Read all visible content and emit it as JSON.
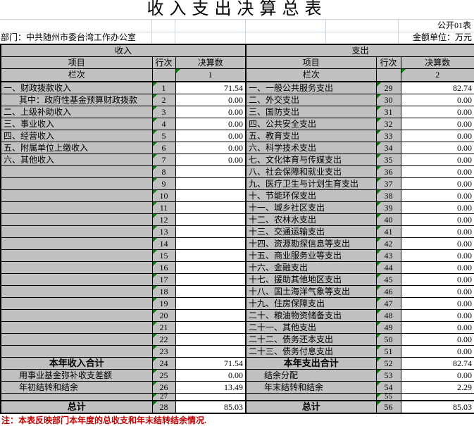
{
  "title": "收入支出决算总表",
  "meta": {
    "table_code": "公开01表",
    "department_label": "部门：中共随州市委台湾工作办公室",
    "unit_label": "金额单位：万元"
  },
  "table": {
    "income_header": "收入",
    "expense_header": "支出",
    "col_headers": {
      "item": "项目",
      "line": "行次",
      "amount": "决算数"
    },
    "column_row_label": "栏次",
    "income_col_no": "1",
    "expense_col_no": "2",
    "income_rows": [
      {
        "label": "一、财政拨款收入",
        "line": "1",
        "value": "71.54",
        "style": "normal"
      },
      {
        "label": "其中：政府性基金预算财政拨款",
        "line": "2",
        "value": "0.00",
        "style": "indent"
      },
      {
        "label": "二、上级补助收入",
        "line": "3",
        "value": "0.00",
        "style": "normal"
      },
      {
        "label": "三、事业收入",
        "line": "4",
        "value": "0.00",
        "style": "normal"
      },
      {
        "label": "四、经营收入",
        "line": "5",
        "value": "0.00",
        "style": "normal"
      },
      {
        "label": "五、附属单位上缴收入",
        "line": "6",
        "value": "0.00",
        "style": "normal"
      },
      {
        "label": "六、其他收入",
        "line": "7",
        "value": "0.00",
        "style": "normal"
      },
      {
        "label": "",
        "line": "8",
        "value": "",
        "style": "normal"
      },
      {
        "label": "",
        "line": "9",
        "value": "",
        "style": "normal"
      },
      {
        "label": "",
        "line": "10",
        "value": "",
        "style": "normal"
      },
      {
        "label": "",
        "line": "11",
        "value": "",
        "style": "normal"
      },
      {
        "label": "",
        "line": "12",
        "value": "",
        "style": "normal"
      },
      {
        "label": "",
        "line": "13",
        "value": "",
        "style": "normal"
      },
      {
        "label": "",
        "line": "14",
        "value": "",
        "style": "normal"
      },
      {
        "label": "",
        "line": "15",
        "value": "",
        "style": "normal"
      },
      {
        "label": "",
        "line": "16",
        "value": "",
        "style": "normal"
      },
      {
        "label": "",
        "line": "17",
        "value": "",
        "style": "normal"
      },
      {
        "label": "",
        "line": "18",
        "value": "",
        "style": "normal"
      },
      {
        "label": "",
        "line": "19",
        "value": "",
        "style": "normal"
      },
      {
        "label": "",
        "line": "20",
        "value": "",
        "style": "normal"
      },
      {
        "label": "",
        "line": "21",
        "value": "",
        "style": "normal"
      },
      {
        "label": "",
        "line": "22",
        "value": "",
        "style": "normal"
      },
      {
        "label": "",
        "line": "23",
        "value": "",
        "style": "normal"
      },
      {
        "label": "本年收入合计",
        "line": "24",
        "value": "71.54",
        "style": "total"
      },
      {
        "label": "用事业基金弥补收支差额",
        "line": "25",
        "value": "0.00",
        "style": "indent"
      },
      {
        "label": "年初结转和结余",
        "line": "26",
        "value": "13.49",
        "style": "indent"
      },
      {
        "label": "",
        "line": "27",
        "value": "",
        "style": "normal",
        "short": true
      },
      {
        "label": "总计",
        "line": "28",
        "value": "85.03",
        "style": "total",
        "thick_top": true
      }
    ],
    "expense_rows": [
      {
        "label": "一、一般公共服务支出",
        "line": "29",
        "value": "82.74",
        "style": "normal"
      },
      {
        "label": "二、外交支出",
        "line": "30",
        "value": "0.00",
        "style": "normal"
      },
      {
        "label": "三、国防支出",
        "line": "31",
        "value": "0.00",
        "style": "normal"
      },
      {
        "label": "四、公共安全支出",
        "line": "32",
        "value": "0.00",
        "style": "normal"
      },
      {
        "label": "五、教育支出",
        "line": "33",
        "value": "0.00",
        "style": "normal"
      },
      {
        "label": "六、科学技术支出",
        "line": "34",
        "value": "0.00",
        "style": "normal"
      },
      {
        "label": "七、文化体育与传媒支出",
        "line": "35",
        "value": "0.00",
        "style": "normal"
      },
      {
        "label": "八、社会保障和就业支出",
        "line": "36",
        "value": "0.00",
        "style": "normal"
      },
      {
        "label": "九、医疗卫生与计划生育支出",
        "line": "37",
        "value": "0.00",
        "style": "normal"
      },
      {
        "label": "十、节能环保支出",
        "line": "38",
        "value": "0.00",
        "style": "normal"
      },
      {
        "label": "十一、城乡社区支出",
        "line": "39",
        "value": "0.00",
        "style": "normal"
      },
      {
        "label": "十二、农林水支出",
        "line": "40",
        "value": "0.00",
        "style": "normal"
      },
      {
        "label": "十三、交通运输支出",
        "line": "41",
        "value": "0.00",
        "style": "normal"
      },
      {
        "label": "十四、资源勘探信息等支出",
        "line": "42",
        "value": "0.00",
        "style": "normal"
      },
      {
        "label": "十五、商业服务业等支出",
        "line": "43",
        "value": "0.00",
        "style": "normal"
      },
      {
        "label": "十六、金融支出",
        "line": "44",
        "value": "0.00",
        "style": "normal"
      },
      {
        "label": "十七、援助其他地区支出",
        "line": "45",
        "value": "0.00",
        "style": "normal"
      },
      {
        "label": "十八、国土海洋气象等支出",
        "line": "46",
        "value": "0.00",
        "style": "normal"
      },
      {
        "label": "十九、住房保障支出",
        "line": "47",
        "value": "0.00",
        "style": "normal"
      },
      {
        "label": "二十、粮油物资储备支出",
        "line": "48",
        "value": "0.00",
        "style": "normal"
      },
      {
        "label": "二十一、其他支出",
        "line": "49",
        "value": "0.00",
        "style": "normal"
      },
      {
        "label": "二十二、债务还本支出",
        "line": "50",
        "value": "0.00",
        "style": "normal"
      },
      {
        "label": "二十三、债务付息支出",
        "line": "51",
        "value": "0.00",
        "style": "normal"
      },
      {
        "label": "本年支出合计",
        "line": "52",
        "value": "82.74",
        "style": "total"
      },
      {
        "label": "结余分配",
        "line": "53",
        "value": "0.00",
        "style": "indent"
      },
      {
        "label": "年末结转和结余",
        "line": "54",
        "value": "2.29",
        "style": "indent"
      },
      {
        "label": "",
        "line": "55",
        "value": "",
        "style": "normal",
        "short": true
      },
      {
        "label": "总计",
        "line": "56",
        "value": "85.03",
        "style": "total",
        "thick_top": true
      }
    ]
  },
  "note": "注：本表反映部门本年度的总收支和年末结转结余情况.",
  "colors": {
    "cell_gray": "#c0c0c0",
    "error_triangle_green": "#008000",
    "note_red": "#c00000",
    "gridline": "#ccd4e0"
  }
}
